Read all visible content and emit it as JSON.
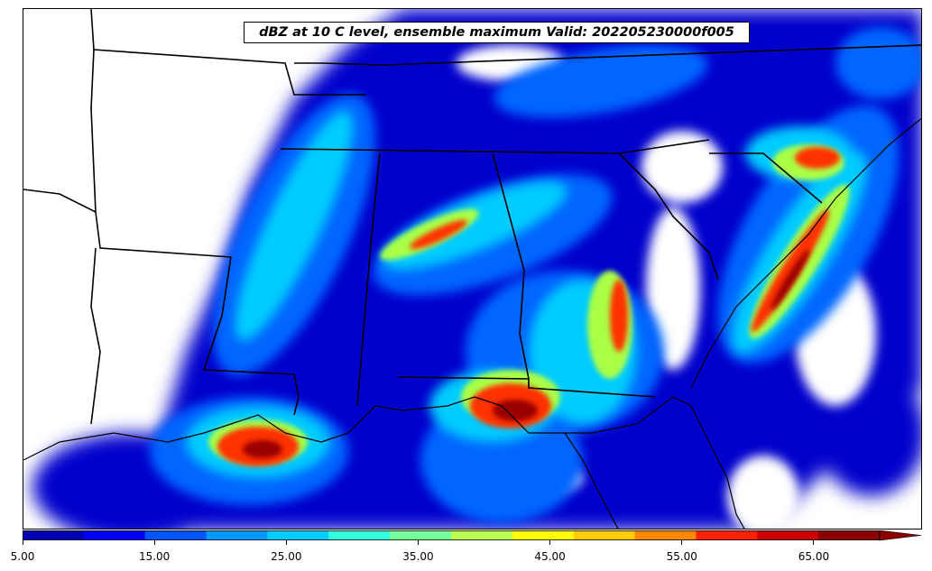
{
  "title": "dBZ at 10 C level, ensemble maximum Valid: 202205230000f005",
  "colorbar": {
    "min": 5,
    "max": 70,
    "step": 5,
    "extend": "max",
    "tick_labels": [
      "5.00",
      "15.00",
      "25.00",
      "35.00",
      "45.00",
      "55.00",
      "65.00"
    ],
    "tick_values": [
      5,
      15,
      25,
      35,
      45,
      55,
      65
    ],
    "colors": [
      "#0000b3",
      "#0000ff",
      "#0055ff",
      "#0099ff",
      "#00ccff",
      "#33ffdd",
      "#77ff99",
      "#bbff55",
      "#ffff00",
      "#ffcc00",
      "#ff8800",
      "#ff2200",
      "#cc0000",
      "#8b0000"
    ]
  }
}
